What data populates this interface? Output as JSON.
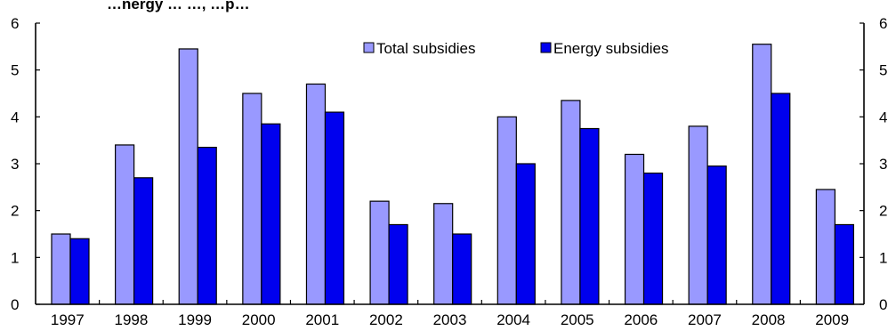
{
  "chart_data": {
    "type": "bar",
    "title": "…nergy … …, …p…",
    "categories": [
      "1997",
      "1998",
      "1999",
      "2000",
      "2001",
      "2002",
      "2003",
      "2004",
      "2005",
      "2006",
      "2007",
      "2008",
      "2009"
    ],
    "series": [
      {
        "name": "Total subsidies",
        "color": "#9999ff",
        "values": [
          1.5,
          3.4,
          5.45,
          4.5,
          4.7,
          2.2,
          2.15,
          4.0,
          4.35,
          3.2,
          3.8,
          5.55,
          2.45
        ]
      },
      {
        "name": "Energy subsidies",
        "color": "#0000ee",
        "values": [
          1.4,
          2.7,
          3.35,
          3.85,
          4.1,
          1.7,
          1.5,
          3.0,
          3.75,
          2.8,
          2.95,
          4.5,
          1.7
        ]
      }
    ],
    "ylim": [
      0,
      6
    ],
    "y_ticks": [
      "0",
      "1",
      "2",
      "3",
      "4",
      "5",
      "6"
    ],
    "right_axis": {
      "ylim": [
        0,
        6
      ],
      "ticks": [
        "0",
        "1",
        "2",
        "3",
        "4",
        "5",
        "6"
      ]
    },
    "legend_position": "top-center",
    "grid": false,
    "xlabel": "",
    "ylabel": ""
  }
}
